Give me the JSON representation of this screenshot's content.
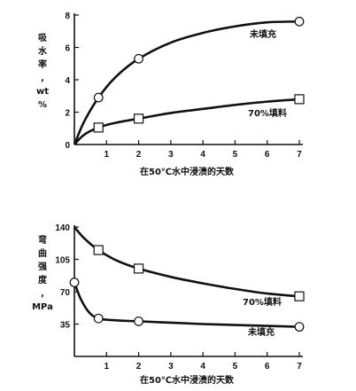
{
  "chart_data": [
    {
      "type": "line",
      "ylabel": [
        "吸",
        "水",
        "率",
        ",",
        "wt",
        "%"
      ],
      "xlabel": "在50℃水中浸渍的天数",
      "xlim": [
        0,
        7
      ],
      "ylim": [
        0,
        8
      ],
      "xticks": [
        1,
        2,
        3,
        4,
        5,
        6,
        7
      ],
      "yticks": [
        0,
        2,
        4,
        6,
        8
      ],
      "series": [
        {
          "name": "未填充",
          "marker": "circle",
          "points": [
            [
              0.75,
              2.9
            ],
            [
              2.0,
              5.3
            ],
            [
              7.0,
              7.6
            ]
          ],
          "curve": [
            [
              0,
              0
            ],
            [
              0.3,
              1.4
            ],
            [
              0.75,
              2.9
            ],
            [
              1.3,
              4.2
            ],
            [
              2.0,
              5.3
            ],
            [
              3.0,
              6.3
            ],
            [
              4.0,
              6.9
            ],
            [
              5.0,
              7.3
            ],
            [
              6.0,
              7.55
            ],
            [
              7.0,
              7.6
            ]
          ]
        },
        {
          "name": "70%填料",
          "marker": "square",
          "points": [
            [
              0.75,
              1.05
            ],
            [
              2.0,
              1.6
            ],
            [
              7.0,
              2.8
            ]
          ],
          "curve": [
            [
              0,
              0
            ],
            [
              0.3,
              0.6
            ],
            [
              0.75,
              1.05
            ],
            [
              1.3,
              1.35
            ],
            [
              2.0,
              1.6
            ],
            [
              3.0,
              1.95
            ],
            [
              4.0,
              2.2
            ],
            [
              5.0,
              2.45
            ],
            [
              6.0,
              2.65
            ],
            [
              7.0,
              2.8
            ]
          ]
        }
      ]
    },
    {
      "type": "line",
      "ylabel": [
        "弯",
        "曲",
        "强",
        "度",
        ",",
        "MPa"
      ],
      "xlabel": "在50℃水中浸渍的天数",
      "xlim": [
        0,
        7
      ],
      "ylim": [
        0,
        140
      ],
      "xticks": [
        1,
        2,
        3,
        4,
        5,
        6,
        7
      ],
      "yticks": [
        35,
        70,
        105,
        140
      ],
      "series": [
        {
          "name": "70%填料",
          "marker": "square",
          "points": [
            [
              0.75,
              115
            ],
            [
              2.0,
              95
            ],
            [
              7.0,
              65
            ]
          ],
          "curve": [
            [
              0,
              140
            ],
            [
              0.3,
              128
            ],
            [
              0.75,
              115
            ],
            [
              1.3,
              104
            ],
            [
              2.0,
              95
            ],
            [
              3.0,
              86
            ],
            [
              4.0,
              79
            ],
            [
              5.0,
              73
            ],
            [
              6.0,
              68
            ],
            [
              7.0,
              65
            ]
          ]
        },
        {
          "name": "未填充",
          "marker": "circle",
          "points": [
            [
              0,
              80
            ],
            [
              0.75,
              41
            ],
            [
              2.0,
              38
            ],
            [
              7.0,
              32
            ]
          ],
          "curve": [
            [
              0,
              80
            ],
            [
              0.2,
              62
            ],
            [
              0.45,
              48
            ],
            [
              0.75,
              41
            ],
            [
              1.3,
              39
            ],
            [
              2.0,
              38
            ],
            [
              3.0,
              36.5
            ],
            [
              4.0,
              35
            ],
            [
              5.0,
              34
            ],
            [
              6.0,
              33
            ],
            [
              7.0,
              32
            ]
          ]
        }
      ]
    }
  ]
}
